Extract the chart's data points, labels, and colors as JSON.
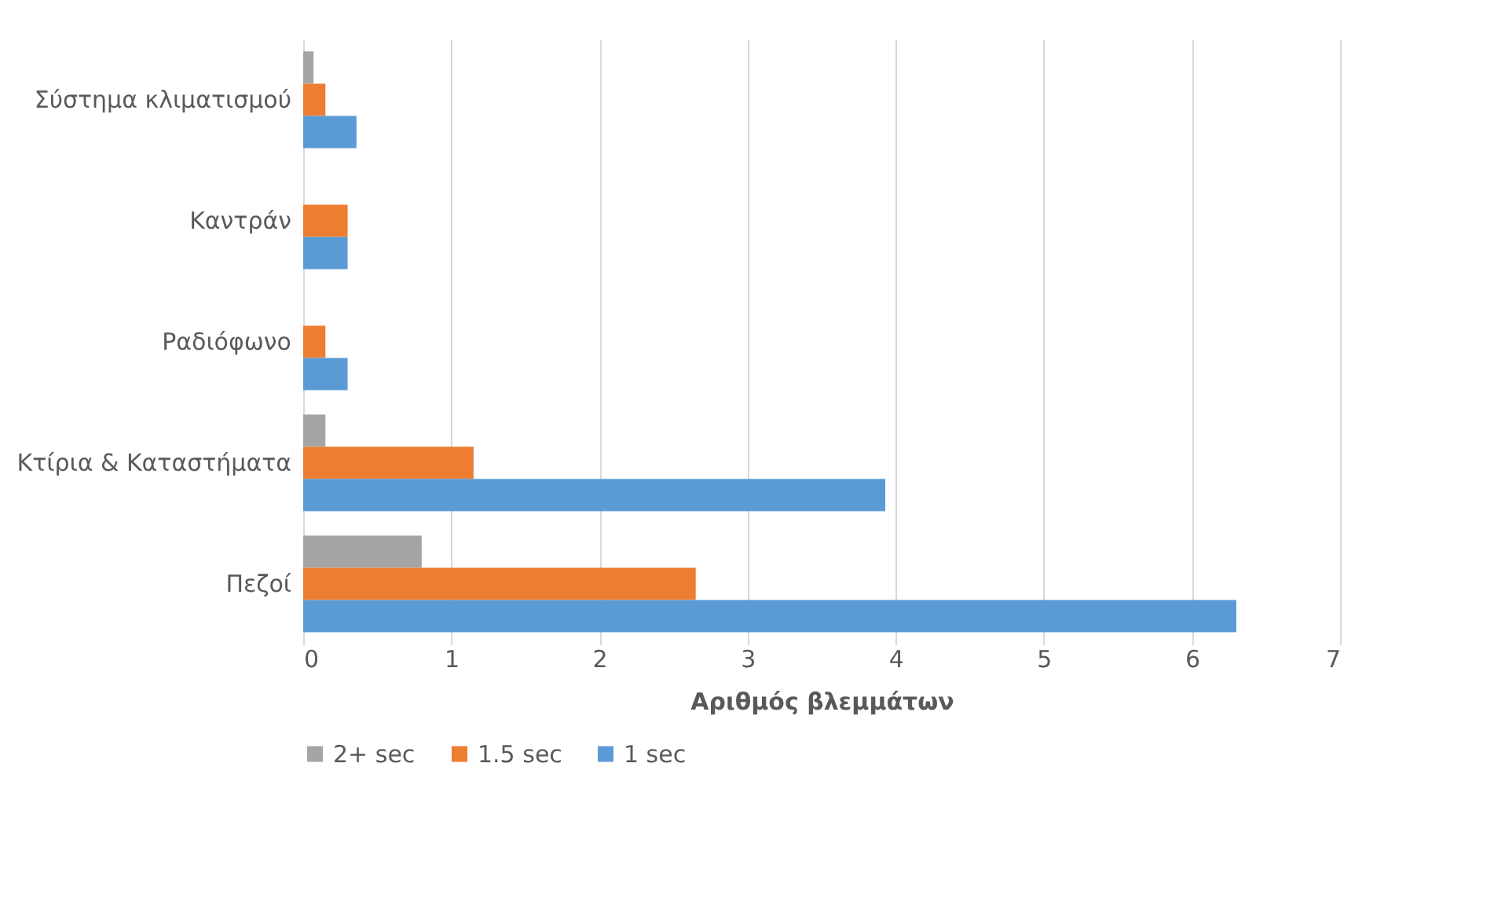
{
  "chart_data": {
    "type": "bar",
    "orientation": "horizontal",
    "xlabel": "Αριθμός βλεμμάτων",
    "categories": [
      "Σύστημα κλιματισμού",
      "Καντράν",
      "Ραδιόφωνο",
      "Κτίρια & Καταστήματα",
      "Πεζοί"
    ],
    "series": [
      {
        "name": "2+ sec",
        "color": "#a5a5a5",
        "values": [
          0.07,
          null,
          null,
          0.15,
          0.8
        ]
      },
      {
        "name": "1.5 sec",
        "color": "#ed7d31",
        "values": [
          0.15,
          0.3,
          0.15,
          1.15,
          2.65
        ]
      },
      {
        "name": "1 sec",
        "color": "#5b9bd5",
        "values": [
          0.36,
          0.3,
          0.3,
          3.93,
          6.3
        ]
      }
    ],
    "xlim": [
      0,
      7
    ],
    "xticks": [
      0,
      1,
      2,
      3,
      4,
      5,
      6,
      7
    ],
    "grid": "x",
    "legend": "bottom"
  }
}
